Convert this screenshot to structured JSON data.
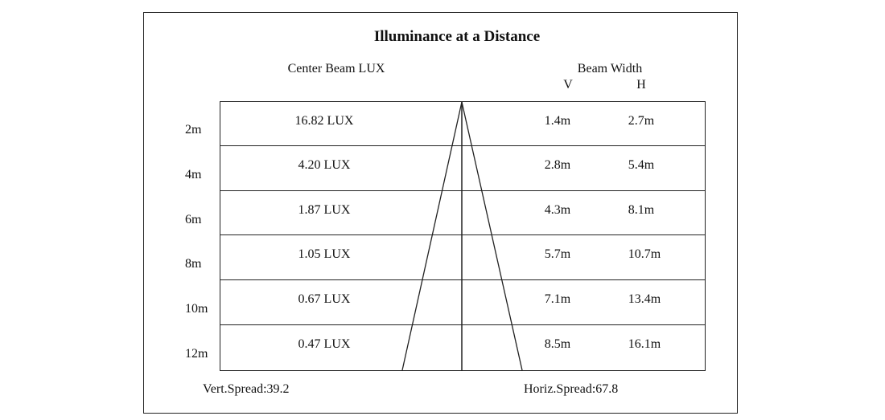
{
  "title": "Illuminance at a Distance",
  "headers": {
    "center_beam": "Center Beam LUX",
    "beam_width": "Beam Width",
    "v": "V",
    "h": "H"
  },
  "rows": [
    {
      "distance": "2m",
      "lux": "16.82 LUX",
      "v": "1.4m",
      "h": "2.7m"
    },
    {
      "distance": "4m",
      "lux": "4.20 LUX",
      "v": "2.8m",
      "h": "5.4m"
    },
    {
      "distance": "6m",
      "lux": "1.87 LUX",
      "v": "4.3m",
      "h": "8.1m"
    },
    {
      "distance": "8m",
      "lux": "1.05 LUX",
      "v": "5.7m",
      "h": "10.7m"
    },
    {
      "distance": "10m",
      "lux": "0.67 LUX",
      "v": "7.1m",
      "h": "13.4m"
    },
    {
      "distance": "12m",
      "lux": "0.47 LUX",
      "v": "8.5m",
      "h": "16.1m"
    }
  ],
  "footer": {
    "vert_spread": "Vert.Spread:39.2",
    "horiz_spread": "Horiz.Spread:67.8"
  }
}
